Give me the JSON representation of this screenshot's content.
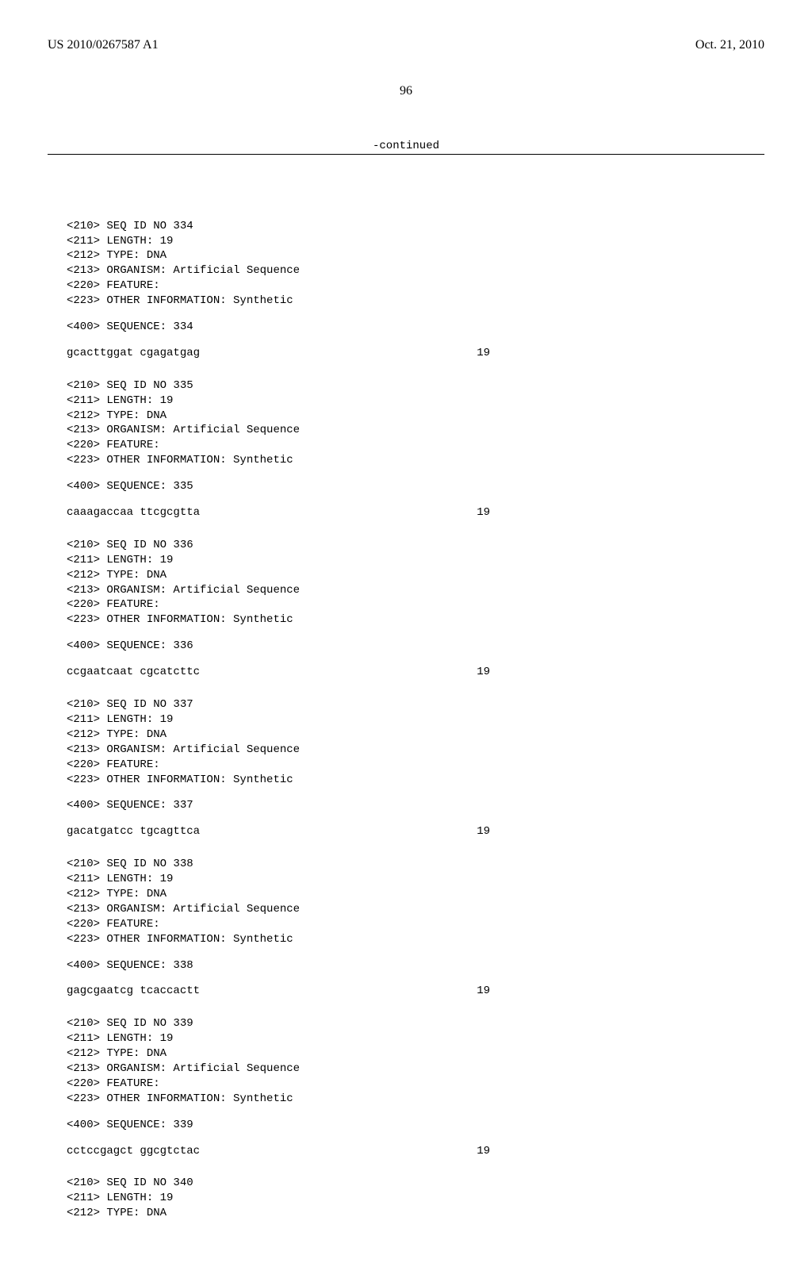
{
  "header": {
    "pub_number": "US 2010/0267587 A1",
    "pub_date": "Oct. 21, 2010"
  },
  "page_number": "96",
  "continued_label": "-continued",
  "entries": [
    {
      "meta": [
        "<210> SEQ ID NO 334",
        "<211> LENGTH: 19",
        "<212> TYPE: DNA",
        "<213> ORGANISM: Artificial Sequence",
        "<220> FEATURE:",
        "<223> OTHER INFORMATION: Synthetic"
      ],
      "seq_header": "<400> SEQUENCE: 334",
      "seq_text": "gcacttggat cgagatgag",
      "seq_pos": "19"
    },
    {
      "meta": [
        "<210> SEQ ID NO 335",
        "<211> LENGTH: 19",
        "<212> TYPE: DNA",
        "<213> ORGANISM: Artificial Sequence",
        "<220> FEATURE:",
        "<223> OTHER INFORMATION: Synthetic"
      ],
      "seq_header": "<400> SEQUENCE: 335",
      "seq_text": "caaagaccaa ttcgcgtta",
      "seq_pos": "19"
    },
    {
      "meta": [
        "<210> SEQ ID NO 336",
        "<211> LENGTH: 19",
        "<212> TYPE: DNA",
        "<213> ORGANISM: Artificial Sequence",
        "<220> FEATURE:",
        "<223> OTHER INFORMATION: Synthetic"
      ],
      "seq_header": "<400> SEQUENCE: 336",
      "seq_text": "ccgaatcaat cgcatcttc",
      "seq_pos": "19"
    },
    {
      "meta": [
        "<210> SEQ ID NO 337",
        "<211> LENGTH: 19",
        "<212> TYPE: DNA",
        "<213> ORGANISM: Artificial Sequence",
        "<220> FEATURE:",
        "<223> OTHER INFORMATION: Synthetic"
      ],
      "seq_header": "<400> SEQUENCE: 337",
      "seq_text": "gacatgatcc tgcagttca",
      "seq_pos": "19"
    },
    {
      "meta": [
        "<210> SEQ ID NO 338",
        "<211> LENGTH: 19",
        "<212> TYPE: DNA",
        "<213> ORGANISM: Artificial Sequence",
        "<220> FEATURE:",
        "<223> OTHER INFORMATION: Synthetic"
      ],
      "seq_header": "<400> SEQUENCE: 338",
      "seq_text": "gagcgaatcg tcaccactt",
      "seq_pos": "19"
    },
    {
      "meta": [
        "<210> SEQ ID NO 339",
        "<211> LENGTH: 19",
        "<212> TYPE: DNA",
        "<213> ORGANISM: Artificial Sequence",
        "<220> FEATURE:",
        "<223> OTHER INFORMATION: Synthetic"
      ],
      "seq_header": "<400> SEQUENCE: 339",
      "seq_text": "cctccgagct ggcgtctac",
      "seq_pos": "19"
    },
    {
      "meta": [
        "<210> SEQ ID NO 340",
        "<211> LENGTH: 19",
        "<212> TYPE: DNA"
      ],
      "seq_header": null,
      "seq_text": null,
      "seq_pos": null
    }
  ]
}
